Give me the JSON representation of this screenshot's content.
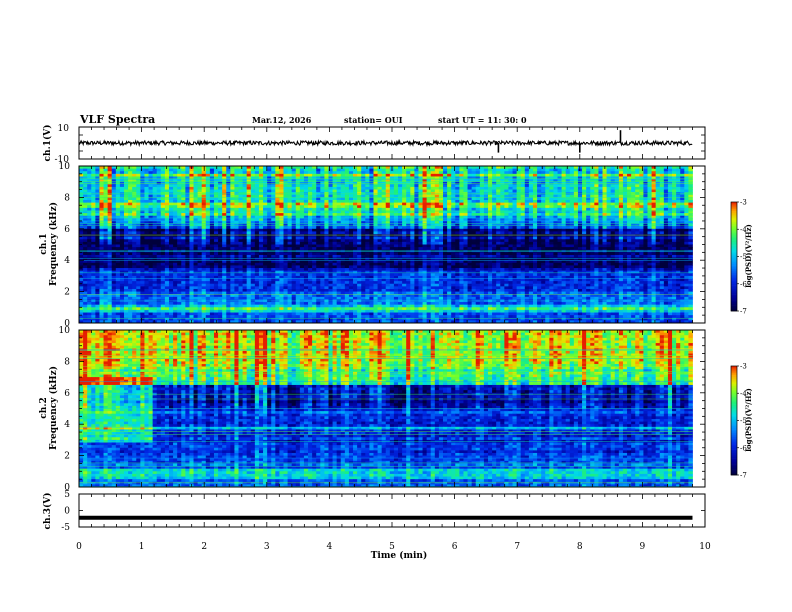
{
  "header": {
    "title": "VLF Spectra",
    "date": "Mar.12, 2026",
    "station": "station= OUI",
    "start_time": "start  UT =   11: 30: 0"
  },
  "colors": {
    "spectrogram_scale": [
      "#000040",
      "#0000c8",
      "#0060ff",
      "#00c8ff",
      "#00e8a0",
      "#40ff40",
      "#d0f000",
      "#ffb000",
      "#ff3000",
      "#ffffff"
    ]
  },
  "chart_data": [
    {
      "id": "ch1_waveform",
      "type": "line",
      "ylabel": "ch.1(V)",
      "ylim": [
        -10,
        10
      ],
      "yticks": [
        10,
        -10
      ],
      "xlim": [
        0,
        10
      ],
      "baseline": 0,
      "spikes": [
        {
          "x": 6.7,
          "y": -6
        },
        {
          "x": 8.0,
          "y": -6
        },
        {
          "x": 8.65,
          "y": 8
        }
      ]
    },
    {
      "id": "ch1_spectrogram",
      "type": "heatmap",
      "ylabel_top": "ch.1",
      "ylabel": "Frequency (kHz)",
      "ylim": [
        0,
        10
      ],
      "yticks": [
        0,
        2,
        4,
        6,
        8,
        10
      ],
      "xlim": [
        0,
        9.8
      ],
      "colorbar": {
        "title": "log(PSD)(V²/Hz)",
        "range": [
          -7,
          -3
        ],
        "ticks": [
          -3,
          -4,
          -5,
          -6,
          -7
        ]
      }
    },
    {
      "id": "ch2_spectrogram",
      "type": "heatmap",
      "ylabel_top": "ch.2",
      "ylabel": "Frequency (kHz)",
      "ylim": [
        0,
        10
      ],
      "yticks": [
        0,
        2,
        4,
        6,
        8,
        10
      ],
      "xlim": [
        0,
        9.8
      ],
      "colorbar": {
        "title": "log(PSD)(V²/Hz)",
        "range": [
          -7,
          -3
        ],
        "ticks": [
          -3,
          -4,
          -5,
          -6,
          -7
        ]
      }
    },
    {
      "id": "ch3_waveform",
      "type": "line",
      "ylabel": "ch.3(V)",
      "ylim": [
        -5,
        5
      ],
      "yticks": [
        5,
        0,
        -5
      ],
      "xlim": [
        0,
        10
      ],
      "level": -2.2
    }
  ],
  "xaxis": {
    "label": "Time (min)",
    "ticks": [
      0,
      1,
      2,
      3,
      4,
      5,
      6,
      7,
      8,
      9,
      10
    ]
  }
}
